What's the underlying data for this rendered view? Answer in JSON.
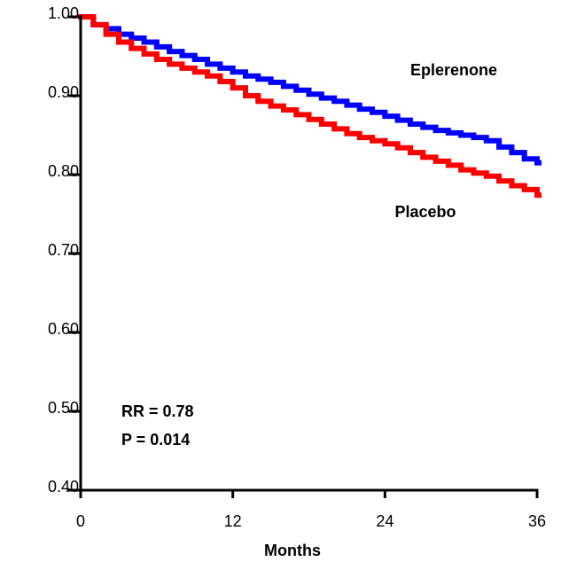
{
  "chart_data": {
    "type": "step",
    "x_label": "Months",
    "x": [
      0,
      1,
      2,
      3,
      4,
      5,
      6,
      7,
      8,
      9,
      10,
      11,
      12,
      13,
      14,
      15,
      16,
      17,
      18,
      19,
      20,
      21,
      22,
      23,
      24,
      25,
      26,
      27,
      28,
      29,
      30,
      31,
      32,
      33,
      34,
      35,
      36
    ],
    "series": [
      {
        "name": "Eplerenone",
        "color": "#0000ff",
        "values": [
          1.0,
          0.99,
          0.985,
          0.978,
          0.973,
          0.968,
          0.962,
          0.956,
          0.951,
          0.946,
          0.94,
          0.935,
          0.93,
          0.925,
          0.921,
          0.917,
          0.912,
          0.907,
          0.902,
          0.897,
          0.893,
          0.888,
          0.883,
          0.879,
          0.874,
          0.869,
          0.864,
          0.86,
          0.856,
          0.853,
          0.85,
          0.847,
          0.843,
          0.835,
          0.828,
          0.82,
          0.815
        ]
      },
      {
        "name": "Placebo",
        "color": "#ff0000",
        "values": [
          1.0,
          0.99,
          0.978,
          0.968,
          0.96,
          0.953,
          0.946,
          0.94,
          0.935,
          0.93,
          0.925,
          0.918,
          0.91,
          0.9,
          0.893,
          0.887,
          0.882,
          0.876,
          0.87,
          0.864,
          0.858,
          0.852,
          0.847,
          0.843,
          0.839,
          0.834,
          0.828,
          0.822,
          0.817,
          0.812,
          0.806,
          0.802,
          0.798,
          0.792,
          0.786,
          0.781,
          0.774
        ]
      }
    ],
    "annotations": [
      "RR = 0.78",
      "P = 0.014"
    ],
    "xlim": [
      0,
      36
    ],
    "xticks": [
      0,
      12,
      24,
      36
    ],
    "ylim": [
      0.4,
      1.0
    ],
    "yticks": [
      {
        "value": 0.4,
        "label": "0.40"
      },
      {
        "value": 0.5,
        "label": "0.50"
      },
      {
        "value": 0.6,
        "label": "0.60"
      },
      {
        "value": 0.7,
        "label": "0.70"
      },
      {
        "value": 0.8,
        "label": "0.80"
      },
      {
        "value": 0.9,
        "label": "0.90"
      },
      {
        "value": 1.0,
        "label": "1.00"
      }
    ],
    "grid": false
  }
}
